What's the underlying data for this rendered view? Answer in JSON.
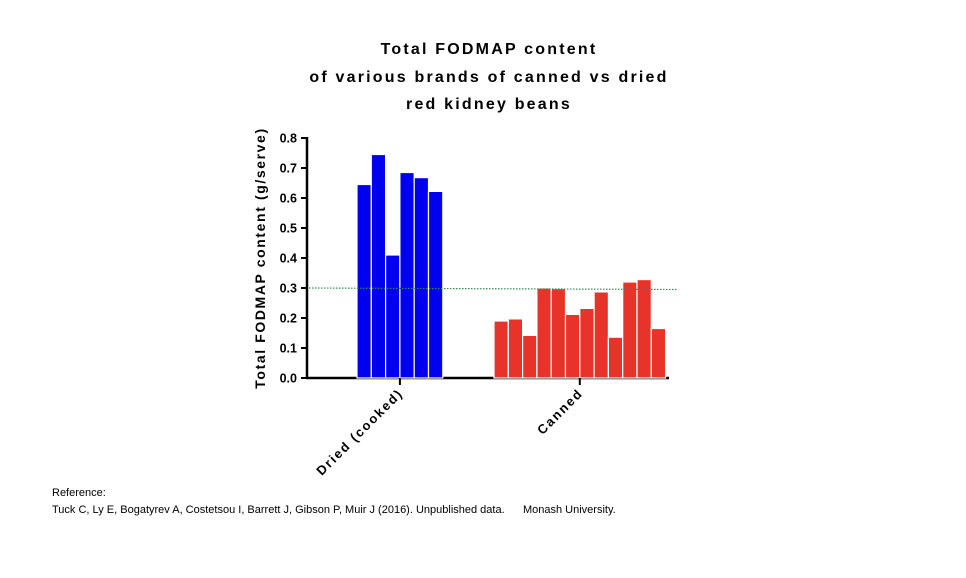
{
  "chart_data": {
    "type": "bar",
    "title_lines": [
      "Total FODMAP content",
      "of various brands of canned vs dried",
      "red kidney beans"
    ],
    "ylabel": "Total FODMAP content (g/serve)",
    "xlabel": "",
    "ylim": [
      0,
      0.8
    ],
    "yticks": [
      "0.0",
      "0.1",
      "0.2",
      "0.3",
      "0.4",
      "0.5",
      "0.6",
      "0.7",
      "0.8"
    ],
    "threshold": 0.3,
    "grid": false,
    "groups": [
      {
        "label": "Dried (cooked)",
        "color": "#0000ee",
        "values": [
          0.645,
          0.745,
          0.41,
          0.685,
          0.668,
          0.622
        ]
      },
      {
        "label": "Canned",
        "color": "#e8332a",
        "values": [
          0.19,
          0.197,
          0.142,
          0.3,
          0.298,
          0.212,
          0.232,
          0.287,
          0.136,
          0.32,
          0.328,
          0.165
        ]
      }
    ],
    "threshold_color": "#2e8b57"
  },
  "reference": {
    "heading": "Reference:",
    "citation": "Tuck C, Ly E, Bogatyrev A, Costetsou I, Barrett J, Gibson P, Muir J (2016). Unpublished data.      Monash University."
  }
}
